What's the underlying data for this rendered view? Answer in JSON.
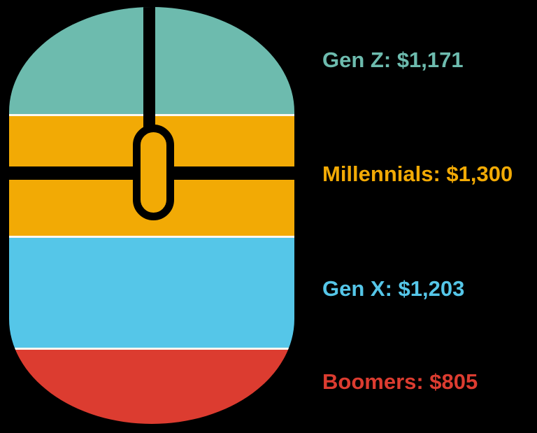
{
  "background_color": "#000000",
  "chart_data": {
    "type": "bar",
    "title": "",
    "graphic": "computer-mouse",
    "legend_position": "right",
    "categories": [
      "Gen Z",
      "Millennials",
      "Gen X",
      "Boomers"
    ],
    "values": [
      1171,
      1300,
      1203,
      805
    ],
    "unit": "$",
    "separator_color": "#FBF7F0",
    "outline_color": "#000000",
    "segments": [
      {
        "name": "Gen Z",
        "value": 1171,
        "label": "Gen Z: $1,171",
        "color": "#6DBBAE"
      },
      {
        "name": "Millennials",
        "value": 1300,
        "label": "Millennials: $1,300",
        "color": "#F2AA05"
      },
      {
        "name": "Gen X",
        "value": 1203,
        "label": "Gen X: $1,203",
        "color": "#55C6E8"
      },
      {
        "name": "Boomers",
        "value": 805,
        "label": "Boomers: $805",
        "color": "#DC3C30"
      }
    ]
  }
}
